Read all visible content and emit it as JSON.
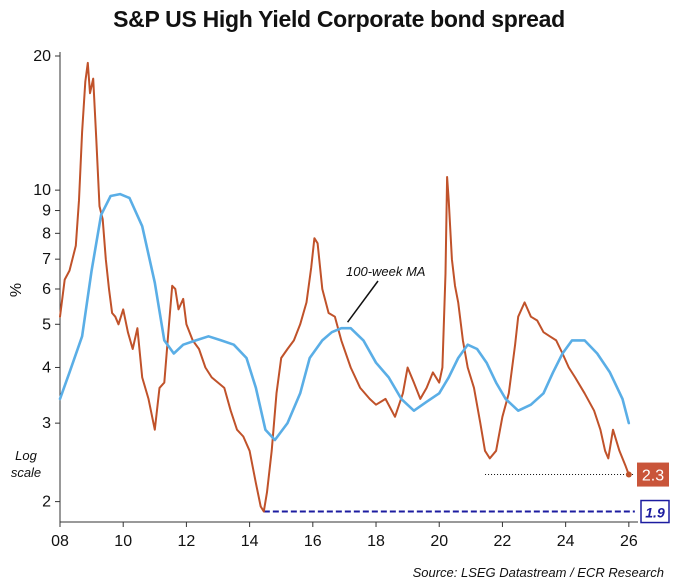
{
  "title": "S&P US High Yield Corporate bond spread",
  "source": "Source: LSEG Datastream / ECR Research",
  "chart_data": {
    "type": "line",
    "title": "S&P US High Yield Corporate bond spread",
    "ylabel": "%",
    "yscale": "log",
    "yscale_label": [
      "Log",
      "scale"
    ],
    "ylim": [
      1.8,
      20
    ],
    "xlim": [
      2008,
      2026.1
    ],
    "x_ticks": [
      "08",
      "10",
      "12",
      "14",
      "16",
      "18",
      "20",
      "22",
      "24",
      "26"
    ],
    "y_ticks": [
      "2",
      "3",
      "4",
      "5",
      "6",
      "7",
      "8",
      "9",
      "10",
      "20"
    ],
    "grid": false,
    "series": [
      {
        "name": "",
        "color": "#c0522a",
        "x": [
          2008.0,
          2008.15,
          2008.3,
          2008.5,
          2008.6,
          2008.7,
          2008.8,
          2008.88,
          2008.95,
          2009.05,
          2009.15,
          2009.25,
          2009.35,
          2009.45,
          2009.55,
          2009.65,
          2009.75,
          2009.85,
          2010.0,
          2010.15,
          2010.3,
          2010.45,
          2010.6,
          2010.8,
          2011.0,
          2011.15,
          2011.3,
          2011.45,
          2011.55,
          2011.65,
          2011.75,
          2011.9,
          2012.0,
          2012.2,
          2012.4,
          2012.6,
          2012.8,
          2013.0,
          2013.2,
          2013.4,
          2013.6,
          2013.8,
          2014.0,
          2014.2,
          2014.35,
          2014.45,
          2014.55,
          2014.7,
          2014.85,
          2015.0,
          2015.2,
          2015.4,
          2015.6,
          2015.8,
          2015.95,
          2016.05,
          2016.15,
          2016.3,
          2016.5,
          2016.7,
          2016.9,
          2017.2,
          2017.5,
          2017.8,
          2018.0,
          2018.3,
          2018.6,
          2018.85,
          2019.0,
          2019.2,
          2019.4,
          2019.6,
          2019.8,
          2020.0,
          2020.1,
          2020.2,
          2020.25,
          2020.3,
          2020.4,
          2020.5,
          2020.6,
          2020.75,
          2020.9,
          2021.1,
          2021.3,
          2021.45,
          2021.6,
          2021.8,
          2022.0,
          2022.2,
          2022.4,
          2022.5,
          2022.7,
          2022.9,
          2023.1,
          2023.3,
          2023.5,
          2023.7,
          2023.9,
          2024.1,
          2024.3,
          2024.6,
          2024.9,
          2025.1,
          2025.25,
          2025.35,
          2025.5,
          2025.7,
          2025.9,
          2026.0
        ],
        "values": [
          5.2,
          6.3,
          6.6,
          7.5,
          9.5,
          13.5,
          17.5,
          19.3,
          16.5,
          17.8,
          13.0,
          9.2,
          8.6,
          7.0,
          6.0,
          5.3,
          5.2,
          5.0,
          5.4,
          4.8,
          4.4,
          4.9,
          3.8,
          3.4,
          2.9,
          3.6,
          3.7,
          5.0,
          6.1,
          6.0,
          5.4,
          5.7,
          5.0,
          4.6,
          4.4,
          4.0,
          3.8,
          3.7,
          3.6,
          3.2,
          2.9,
          2.8,
          2.6,
          2.2,
          1.95,
          1.9,
          2.1,
          2.6,
          3.5,
          4.2,
          4.4,
          4.6,
          5.0,
          5.6,
          6.7,
          7.8,
          7.6,
          6.0,
          5.3,
          5.2,
          4.6,
          4.0,
          3.6,
          3.4,
          3.3,
          3.4,
          3.1,
          3.5,
          4.0,
          3.7,
          3.4,
          3.6,
          3.9,
          3.7,
          4.0,
          6.5,
          10.7,
          9.5,
          7.0,
          6.1,
          5.6,
          4.6,
          4.0,
          3.6,
          3.0,
          2.6,
          2.5,
          2.6,
          3.1,
          3.5,
          4.5,
          5.2,
          5.6,
          5.2,
          5.1,
          4.8,
          4.7,
          4.6,
          4.3,
          4.0,
          3.8,
          3.5,
          3.2,
          2.9,
          2.6,
          2.5,
          2.9,
          2.6,
          2.4,
          2.3
        ]
      },
      {
        "name": "100-week MA",
        "color": "#5aaee6",
        "x": [
          2008.0,
          2008.3,
          2008.7,
          2009.0,
          2009.3,
          2009.6,
          2009.9,
          2010.2,
          2010.6,
          2011.0,
          2011.3,
          2011.6,
          2011.9,
          2012.3,
          2012.7,
          2013.1,
          2013.5,
          2013.9,
          2014.2,
          2014.5,
          2014.8,
          2015.2,
          2015.6,
          2015.9,
          2016.3,
          2016.6,
          2016.9,
          2017.2,
          2017.6,
          2018.0,
          2018.4,
          2018.8,
          2019.2,
          2019.6,
          2020.0,
          2020.3,
          2020.6,
          2020.9,
          2021.2,
          2021.5,
          2021.8,
          2022.1,
          2022.5,
          2022.9,
          2023.3,
          2023.6,
          2023.9,
          2024.2,
          2024.6,
          2025.0,
          2025.4,
          2025.8,
          2026.0
        ],
        "values": [
          3.4,
          3.9,
          4.7,
          6.6,
          8.8,
          9.7,
          9.8,
          9.6,
          8.3,
          6.2,
          4.6,
          4.3,
          4.5,
          4.6,
          4.7,
          4.6,
          4.5,
          4.2,
          3.6,
          2.9,
          2.75,
          3.0,
          3.5,
          4.2,
          4.6,
          4.8,
          4.9,
          4.9,
          4.6,
          4.1,
          3.8,
          3.4,
          3.2,
          3.35,
          3.5,
          3.8,
          4.2,
          4.5,
          4.4,
          4.1,
          3.7,
          3.4,
          3.2,
          3.3,
          3.5,
          3.9,
          4.3,
          4.6,
          4.6,
          4.3,
          3.9,
          3.4,
          3.0
        ]
      }
    ],
    "annotations": [
      {
        "text": "100-week MA",
        "x": 2017.1,
        "y": 4.9
      },
      {
        "text": "2.3",
        "kind": "current-value-badge"
      },
      {
        "text": "1.9",
        "kind": "low-value-badge"
      }
    ],
    "reference_lines": [
      {
        "value": 2.3,
        "from_x": 2021.45,
        "to_x": 2026.0,
        "style": "dotted",
        "color": "#111111"
      },
      {
        "value": 1.9,
        "from_x": 2014.45,
        "to_x": 2026.0,
        "style": "dashed",
        "color": "#1c1ca0"
      }
    ]
  }
}
